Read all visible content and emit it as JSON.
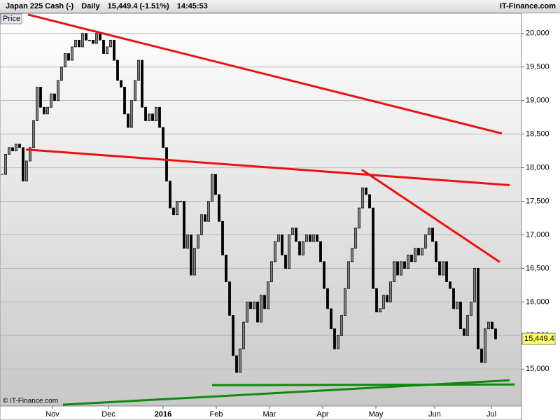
{
  "header": {
    "instrument": "Japan 225 Cash (-)",
    "period": "Daily",
    "quote": "15,449.4 (-1.51%)",
    "time": "14:45:53",
    "brand": "IT-Finance.com"
  },
  "chart_data": {
    "type": "candlestick",
    "tab": "Price",
    "copyright": "© IT-Finance.com",
    "close": [
      17900,
      18200,
      18300,
      18250,
      18350,
      18300,
      17800,
      18100,
      18300,
      18700,
      19200,
      18900,
      18800,
      18900,
      19100,
      19000,
      19300,
      19500,
      19700,
      19600,
      19800,
      19900,
      19800,
      20000,
      19900,
      19900,
      19850,
      20000,
      19900,
      19700,
      19800,
      19900,
      19600,
      19300,
      19200,
      18800,
      18600,
      19000,
      19300,
      19600,
      18900,
      18700,
      18800,
      18700,
      18900,
      18600,
      18300,
      17800,
      17400,
      17300,
      17500,
      17500,
      16800,
      17000,
      16400,
      16800,
      17000,
      17300,
      17200,
      17500,
      17900,
      17600,
      17200,
      16700,
      16300,
      15800,
      15200,
      14950,
      15300,
      15700,
      16000,
      15900,
      16000,
      15700,
      16100,
      15900,
      16300,
      16600,
      16900,
      17000,
      16700,
      16500,
      17000,
      17100,
      16900,
      16700,
      16900,
      17000,
      16900,
      17000,
      16900,
      16600,
      16200,
      15900,
      15600,
      15300,
      15500,
      15800,
      16200,
      16600,
      16800,
      17100,
      17400,
      17700,
      17600,
      17400,
      16200,
      15850,
      15900,
      16100,
      16000,
      16300,
      16600,
      16400,
      16600,
      16500,
      16700,
      16600,
      16800,
      16700,
      16800,
      17000,
      17100,
      16900,
      16600,
      16400,
      16600,
      16300,
      16200,
      15900,
      16000,
      15600,
      15500,
      15800,
      16000,
      16500,
      15300,
      15100,
      15600,
      15700,
      15600,
      15449.4
    ],
    "color": "#000000",
    "xlim": [
      -0.6,
      148.4
    ],
    "xticks": [
      {
        "value": 14.4,
        "label": "Nov"
      },
      {
        "value": 30.4,
        "label": "Dec"
      },
      {
        "value": 46,
        "label": "2016"
      },
      {
        "value": 61.2,
        "label": "Feb"
      },
      {
        "value": 76.4,
        "label": "Mar"
      },
      {
        "value": 91.6,
        "label": "Apr"
      },
      {
        "value": 106.8,
        "label": "May"
      },
      {
        "value": 123.6,
        "label": "Jun"
      },
      {
        "value": 139.8,
        "label": "Jul"
      }
    ],
    "ylim": [
      14450,
      20300
    ],
    "yticks": [
      {
        "value": 15000,
        "label": "15,000"
      },
      {
        "value": 15500,
        "label": "15,500"
      },
      {
        "value": 16000,
        "label": "16,000"
      },
      {
        "value": 16500,
        "label": "16,500"
      },
      {
        "value": 17000,
        "label": "17,000"
      },
      {
        "value": 17500,
        "label": "17,500"
      },
      {
        "value": 18000,
        "label": "18,000"
      },
      {
        "value": 18500,
        "label": "18,500"
      },
      {
        "value": 19000,
        "label": "19,000"
      },
      {
        "value": 19500,
        "label": "19,500"
      },
      {
        "value": 20000,
        "label": "20,000"
      }
    ],
    "grid": true,
    "last_price": {
      "value": 15449.4,
      "label": "15,449.4"
    },
    "trendlines": [
      {
        "color": "#ee1111",
        "points": [
          [
            7.4,
            20281
          ],
          [
            142.8,
            18510
          ]
        ]
      },
      {
        "color": "#ee1111",
        "points": [
          [
            6.8,
            18271
          ],
          [
            145,
            17740
          ]
        ]
      },
      {
        "color": "#ee1111",
        "points": [
          [
            102.8,
            17969
          ],
          [
            142.2,
            16594
          ]
        ]
      },
      {
        "color": "#118811",
        "points": [
          [
            60,
            14760
          ],
          [
            146.4,
            14771
          ]
        ]
      },
      {
        "color": "#118811",
        "points": [
          [
            17.4,
            14469
          ],
          [
            145,
            14833
          ]
        ]
      }
    ]
  }
}
